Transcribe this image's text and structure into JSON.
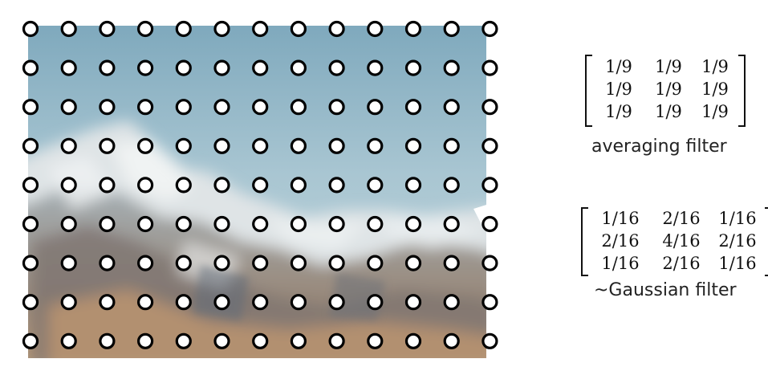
{
  "averaging": {
    "matrix": [
      [
        "1/9",
        "1/9",
        "1/9"
      ],
      [
        "1/9",
        "1/9",
        "1/9"
      ],
      [
        "1/9",
        "1/9",
        "1/9"
      ]
    ],
    "caption": "averaging filter"
  },
  "gaussian": {
    "matrix": [
      [
        "1/16",
        "2/16",
        "1/16"
      ],
      [
        "2/16",
        "4/16",
        "2/16"
      ],
      [
        "1/16",
        "2/16",
        "1/16"
      ]
    ],
    "caption": "~Gaussian filter"
  },
  "colors": {
    "sky": "#8fb3c4",
    "mountain": "#e8eaea",
    "rock": "#8a7462",
    "sample_fill": "#ffffff",
    "sample_stroke": "#000000"
  }
}
